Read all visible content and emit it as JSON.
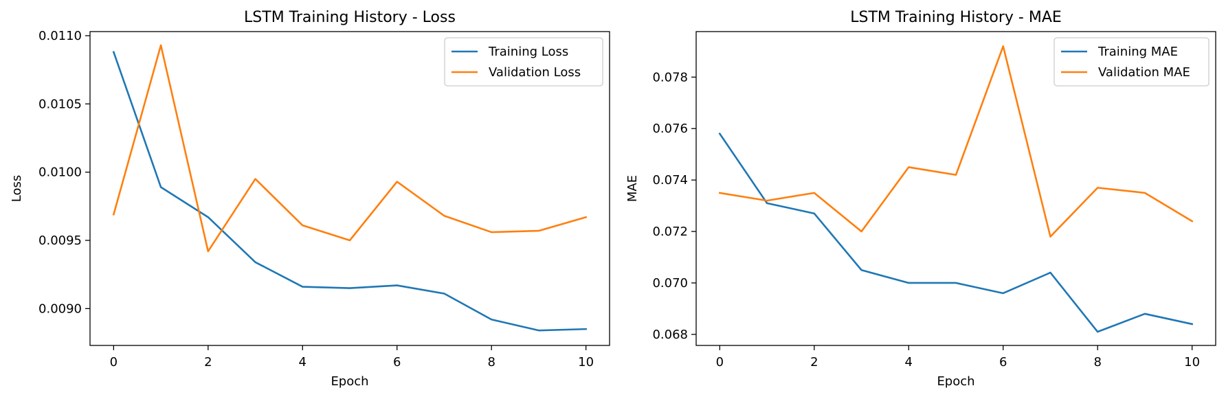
{
  "colors": {
    "training": "#1f77b4",
    "validation": "#ff7f0e",
    "axes": "#000000",
    "legend_border": "#cccccc"
  },
  "chart_data": [
    {
      "type": "line",
      "title": "LSTM Training History - Loss",
      "xlabel": "Epoch",
      "ylabel": "Loss",
      "x": [
        0,
        1,
        2,
        3,
        4,
        5,
        6,
        7,
        8,
        9,
        10
      ],
      "xlim": [
        -0.5,
        10.5
      ],
      "ylim": [
        0.00873,
        0.01103
      ],
      "xticks": [
        0,
        2,
        4,
        6,
        8,
        10
      ],
      "xtick_labels": [
        "0",
        "2",
        "4",
        "6",
        "8",
        "10"
      ],
      "yticks": [
        0.009,
        0.0095,
        0.01,
        0.0105,
        0.011
      ],
      "ytick_labels": [
        "0.0090",
        "0.0095",
        "0.0100",
        "0.0105",
        "0.0110"
      ],
      "legend_position": "upper-right",
      "grid": false,
      "series": [
        {
          "name": "Training Loss",
          "color_key": "training",
          "values": [
            0.01088,
            0.00989,
            0.00967,
            0.00934,
            0.00916,
            0.00915,
            0.00917,
            0.00911,
            0.00892,
            0.00884,
            0.00885
          ]
        },
        {
          "name": "Validation Loss",
          "color_key": "validation",
          "values": [
            0.00969,
            0.01093,
            0.00942,
            0.00995,
            0.00961,
            0.0095,
            0.00993,
            0.00968,
            0.00956,
            0.00957,
            0.00967
          ]
        }
      ]
    },
    {
      "type": "line",
      "title": "LSTM Training History - MAE",
      "xlabel": "Epoch",
      "ylabel": "MAE",
      "x": [
        0,
        1,
        2,
        3,
        4,
        5,
        6,
        7,
        8,
        9,
        10
      ],
      "xlim": [
        -0.5,
        10.5
      ],
      "ylim": [
        0.06757,
        0.07977
      ],
      "xticks": [
        0,
        2,
        4,
        6,
        8,
        10
      ],
      "xtick_labels": [
        "0",
        "2",
        "4",
        "6",
        "8",
        "10"
      ],
      "yticks": [
        0.068,
        0.07,
        0.072,
        0.074,
        0.076,
        0.078
      ],
      "ytick_labels": [
        "0.068",
        "0.070",
        "0.072",
        "0.074",
        "0.076",
        "0.078"
      ],
      "legend_position": "upper-right",
      "grid": false,
      "series": [
        {
          "name": "Training MAE",
          "color_key": "training",
          "values": [
            0.0758,
            0.0731,
            0.0727,
            0.0705,
            0.07,
            0.07,
            0.0696,
            0.0704,
            0.0681,
            0.0688,
            0.0684
          ]
        },
        {
          "name": "Validation MAE",
          "color_key": "validation",
          "values": [
            0.0735,
            0.0732,
            0.0735,
            0.072,
            0.0745,
            0.0742,
            0.0792,
            0.0718,
            0.0737,
            0.0735,
            0.0724
          ]
        }
      ]
    }
  ]
}
